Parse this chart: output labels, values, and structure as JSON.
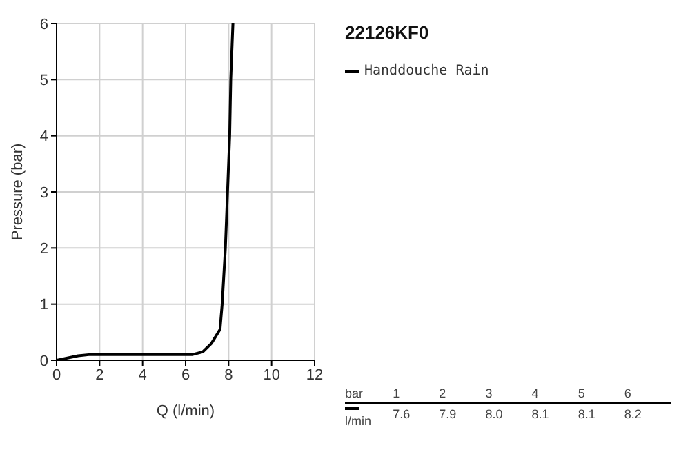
{
  "chart_data": {
    "type": "line",
    "title": "22126KF0",
    "xlabel": "Q (l/min)",
    "ylabel": "Pressure (bar)",
    "xlim": [
      0,
      12
    ],
    "xticks": [
      0,
      2,
      4,
      6,
      8,
      10,
      12
    ],
    "ylim": [
      0,
      6
    ],
    "yticks": [
      0,
      1,
      2,
      3,
      4,
      5,
      6
    ],
    "grid": true,
    "legend": "top right",
    "marker": "none",
    "line_style": "solid",
    "series": [
      {
        "name": "Handdouche Rain",
        "color": "#000000",
        "x": [
          0,
          0.5,
          1,
          1.5,
          3,
          6.3,
          6.8,
          7.2,
          7.6,
          7.7,
          7.85,
          7.95,
          8.05,
          8.1,
          8.2
        ],
        "values": [
          0,
          0.04,
          0.08,
          0.1,
          0.1,
          0.1,
          0.15,
          0.3,
          0.55,
          1,
          2,
          3,
          4,
          5,
          6
        ]
      }
    ],
    "annotations": [
      "bar",
      "1",
      "2",
      "3",
      "4",
      "5",
      "6",
      "l/min",
      "7.6",
      "7.9",
      "8.0",
      "8.1",
      "8.1",
      "8.2"
    ]
  }
}
